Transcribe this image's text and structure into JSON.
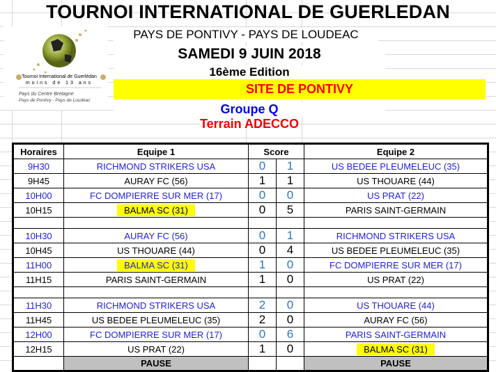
{
  "header": {
    "title": "TOURNOI INTERNATIONAL DE GUERLEDAN",
    "subtitle": "PAYS DE PONTIVY - PAYS DE LOUDEAC",
    "date": "SAMEDI 9 JUIN 2018",
    "edition": "16ème Edition",
    "site": "SITE DE PONTIVY",
    "groupe": "Groupe Q",
    "terrain": "Terrain ADECCO"
  },
  "logo": {
    "line1": "Tournoi International de Guerlédan",
    "line2": "moins de 13 ans",
    "line3": "Pays du Centre Bretagne",
    "line4": "Pays de Pontivy - Pays de Loudéac"
  },
  "table": {
    "columns": [
      "Horaires",
      "Equipe 1",
      "Score",
      "Equipe 2"
    ],
    "highlight_team": "BALMA SC (31)",
    "pause_label": "PAUSE",
    "rows": [
      {
        "time": "9H30",
        "team1": "RICHMOND STRIKERS USA",
        "s1": "0",
        "s2": "1",
        "team2": "US BEDEE PLEUMELEUC (35)",
        "blue": true
      },
      {
        "time": "9H45",
        "team1": "AURAY FC (56)",
        "s1": "1",
        "s2": "1",
        "team2": "US THOUARE (44)",
        "blue": false
      },
      {
        "time": "10H00",
        "team1": "FC DOMPIERRE SUR MER (17)",
        "s1": "0",
        "s2": "0",
        "team2": "US PRAT (22)",
        "blue": true
      },
      {
        "time": "10H15",
        "team1": "BALMA SC (31)",
        "s1": "0",
        "s2": "5",
        "team2": "PARIS SAINT-GERMAIN",
        "blue": false
      },
      {
        "gap": true
      },
      {
        "time": "10H30",
        "team1": "AURAY FC (56)",
        "s1": "0",
        "s2": "1",
        "team2": "RICHMOND STRIKERS USA",
        "blue": true
      },
      {
        "time": "10H45",
        "team1": "US THOUARE (44)",
        "s1": "0",
        "s2": "4",
        "team2": "US BEDEE PLEUMELEUC (35)",
        "blue": false
      },
      {
        "time": "11H00",
        "team1": "BALMA SC (31)",
        "s1": "1",
        "s2": "0",
        "team2": "FC DOMPIERRE SUR MER (17)",
        "blue": true
      },
      {
        "time": "11H15",
        "team1": "PARIS SAINT-GERMAIN",
        "s1": "1",
        "s2": "0",
        "team2": "US PRAT (22)",
        "blue": false
      },
      {
        "gap": true
      },
      {
        "time": "11H30",
        "team1": "RICHMOND STRIKERS USA",
        "s1": "2",
        "s2": "0",
        "team2": "US THOUARE (44)",
        "blue": true
      },
      {
        "time": "11H45",
        "team1": "US BEDEE PLEUMELEUC (35)",
        "s1": "2",
        "s2": "0",
        "team2": "AURAY FC (56)",
        "blue": false
      },
      {
        "time": "12H00",
        "team1": "FC DOMPIERRE SUR MER (17)",
        "s1": "0",
        "s2": "6",
        "team2": "PARIS SAINT-GERMAIN",
        "blue": true
      },
      {
        "time": "12H15",
        "team1": "US PRAT (22)",
        "s1": "1",
        "s2": "0",
        "team2": "BALMA SC (31)",
        "blue": false
      }
    ]
  },
  "colors": {
    "highlight": "#ffff00",
    "blue_text": "#2222cc",
    "score_blue": "#2e75b6",
    "red": "#ee0000"
  }
}
